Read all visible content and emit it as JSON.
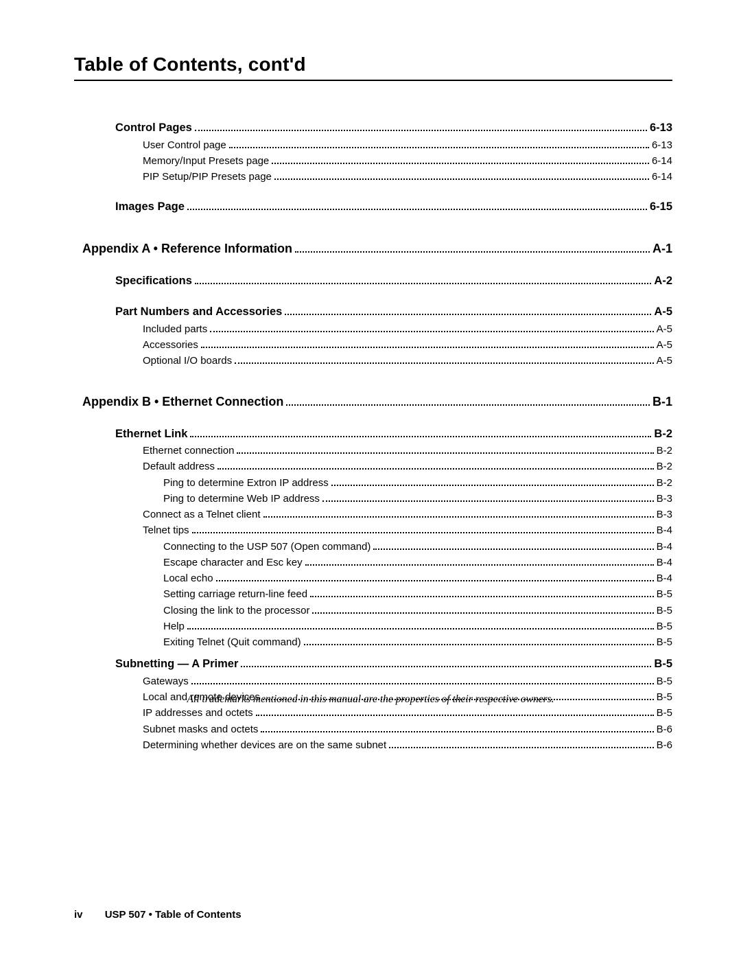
{
  "title": "Table of Contents, cont'd",
  "trademark_note": "All trademarks mentioned in this manual are the properties of their respective owners.",
  "footer": {
    "page_num": "iv",
    "doc": "USP 507 • Table of Contents"
  },
  "entries": [
    {
      "label": "Control Pages",
      "page": "6-13",
      "level": 1,
      "gap": ""
    },
    {
      "label": "User Control page",
      "page": "6-13",
      "level": 2,
      "gap": ""
    },
    {
      "label": "Memory/Input Presets page",
      "page": "6-14",
      "level": 2,
      "gap": ""
    },
    {
      "label": "PIP Setup/PIP Presets page",
      "page": "6-14",
      "level": 2,
      "gap": ""
    },
    {
      "label": "Images Page",
      "page": "6-15",
      "level": 1,
      "gap": "gap-md"
    },
    {
      "label": "Appendix A • Reference Information",
      "page": "A-1",
      "level": 0,
      "gap": "gap-lg"
    },
    {
      "label": "Specifications",
      "page": "A-2",
      "level": 1,
      "gap": "gap-md"
    },
    {
      "label": "Part Numbers and Accessories",
      "page": "A-5",
      "level": 1,
      "gap": "gap-md"
    },
    {
      "label": "Included parts",
      "page": "A-5",
      "level": 2,
      "gap": ""
    },
    {
      "label": "Accessories",
      "page": "A-5",
      "level": 2,
      "gap": ""
    },
    {
      "label": "Optional I/O boards",
      "page": "A-5",
      "level": 2,
      "gap": ""
    },
    {
      "label": "Appendix B • Ethernet Connection",
      "page": "B-1",
      "level": 0,
      "gap": "gap-lg"
    },
    {
      "label": "Ethernet Link",
      "page": "B-2",
      "level": 1,
      "gap": "gap-md"
    },
    {
      "label": "Ethernet connection",
      "page": "B-2",
      "level": 2,
      "gap": ""
    },
    {
      "label": "Default address",
      "page": "B-2",
      "level": 2,
      "gap": ""
    },
    {
      "label": "Ping to determine Extron IP address",
      "page": "B-2",
      "level": 3,
      "gap": ""
    },
    {
      "label": "Ping to determine Web IP address",
      "page": "B-3",
      "level": 3,
      "gap": ""
    },
    {
      "label": "Connect as a Telnet client",
      "page": "B-3",
      "level": 2,
      "gap": ""
    },
    {
      "label": "Telnet tips",
      "page": "B-4",
      "level": 2,
      "gap": ""
    },
    {
      "label": "Connecting to the USP 507 (Open command)",
      "page": "B-4",
      "level": 3,
      "gap": ""
    },
    {
      "label": "Escape character and Esc key",
      "page": "B-4",
      "level": 3,
      "gap": ""
    },
    {
      "label": "Local echo",
      "page": "B-4",
      "level": 3,
      "gap": ""
    },
    {
      "label": "Setting carriage return-line feed",
      "page": "B-5",
      "level": 3,
      "gap": ""
    },
    {
      "label": "Closing the link to the processor",
      "page": "B-5",
      "level": 3,
      "gap": ""
    },
    {
      "label": "Help",
      "page": "B-5",
      "level": 3,
      "gap": ""
    },
    {
      "label": "Exiting Telnet (Quit command)",
      "page": "B-5",
      "level": 3,
      "gap": ""
    },
    {
      "label": "Subnetting — A Primer",
      "page": "B-5",
      "level": 1,
      "gap": "gap-sm"
    },
    {
      "label": "Gateways",
      "page": "B-5",
      "level": 2,
      "gap": ""
    },
    {
      "label": "Local and remote devices",
      "page": "B-5",
      "level": 2,
      "gap": ""
    },
    {
      "label": "IP addresses and octets",
      "page": "B-5",
      "level": 2,
      "gap": ""
    },
    {
      "label": "Subnet masks and octets",
      "page": "B-6",
      "level": 2,
      "gap": ""
    },
    {
      "label": "Determining whether devices are on the same subnet",
      "page": "B-6",
      "level": 2,
      "gap": ""
    }
  ]
}
